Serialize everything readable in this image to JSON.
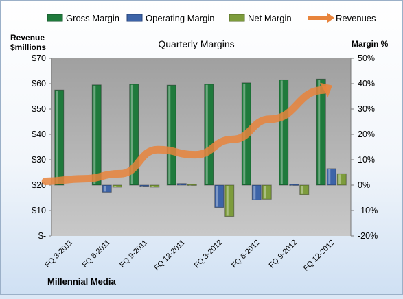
{
  "chart_data": {
    "type": "bar",
    "title": "Quarterly Margins",
    "source_label": "Millennial Media",
    "y_left_label_line1": "Revenue",
    "y_left_label_line2": "$millions",
    "y_right_label": "Margin %",
    "categories": [
      "FQ 3-2011",
      "FQ 6-2011",
      "FQ 9-2011",
      "FQ 12-2011",
      "FQ 3-2012",
      "FQ 6-2012",
      "FQ 9-2012",
      "FQ 12-2012"
    ],
    "series": [
      {
        "name": "Gross Margin",
        "axis": "right",
        "kind": "bar",
        "color": "#1f7a3c",
        "values": [
          37.5,
          39.5,
          39.8,
          39.4,
          39.8,
          40.3,
          41.5,
          41.8
        ]
      },
      {
        "name": "Operating Margin",
        "axis": "right",
        "kind": "bar",
        "color": "#3d64a8",
        "values": [
          0.0,
          -2.8,
          -0.4,
          0.6,
          -8.8,
          -5.8,
          0.3,
          6.5
        ]
      },
      {
        "name": "Net Margin",
        "axis": "right",
        "kind": "bar",
        "color": "#7d9c3c",
        "values": [
          0.0,
          -0.8,
          -0.8,
          0.3,
          -12.3,
          -5.5,
          -3.7,
          4.5
        ]
      },
      {
        "name": "Revenues",
        "axis": "left",
        "kind": "line",
        "color": "#e8843c",
        "values": [
          21.5,
          22.5,
          24.5,
          34,
          32,
          38,
          46,
          57.5
        ]
      }
    ],
    "y_left": {
      "min": 0,
      "max": 70,
      "step": 10,
      "tick_labels": [
        "$-",
        "$10",
        "$20",
        "$30",
        "$40",
        "$50",
        "$60",
        "$70"
      ]
    },
    "y_right": {
      "min": -20,
      "max": 50,
      "step": 10,
      "tick_labels": [
        "-20%",
        "-10%",
        "0%",
        "10%",
        "20%",
        "30%",
        "40%",
        "50%"
      ]
    },
    "grid": false,
    "legend_position": "top"
  }
}
